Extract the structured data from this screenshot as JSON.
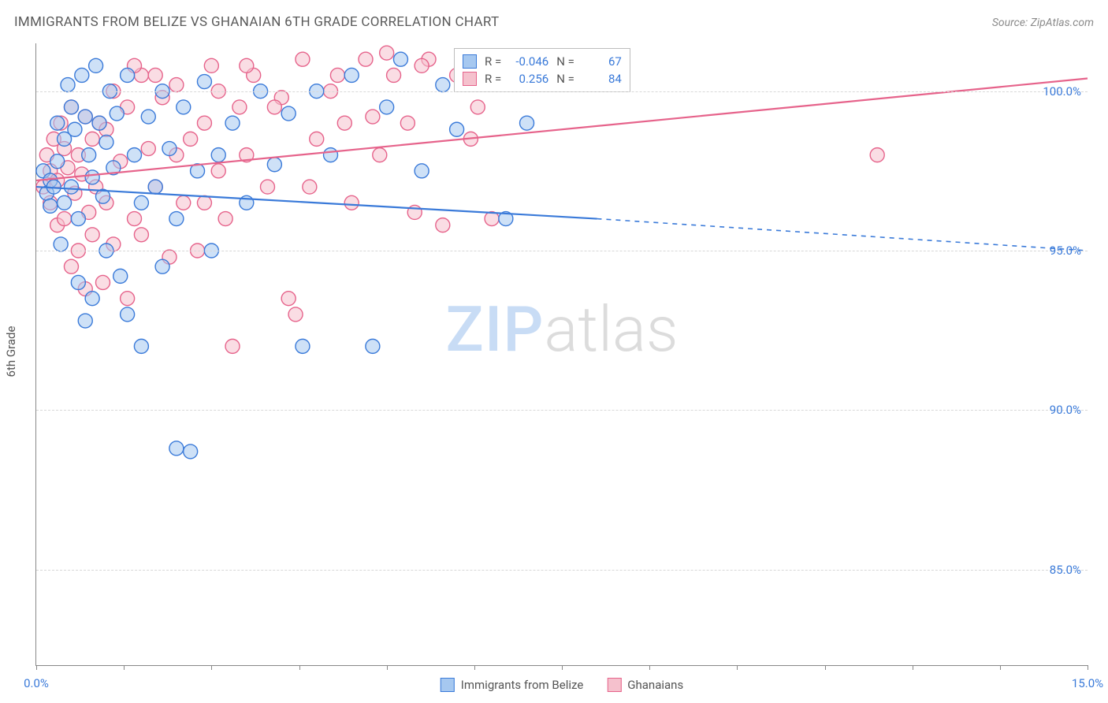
{
  "title": "IMMIGRANTS FROM BELIZE VS GHANAIAN 6TH GRADE CORRELATION CHART",
  "source": "Source: ZipAtlas.com",
  "y_axis_label": "6th Grade",
  "watermark": {
    "zip": "ZIP",
    "atlas": "atlas"
  },
  "colors": {
    "blue_fill": "#a6c8f0",
    "blue_stroke": "#3a7ad9",
    "pink_fill": "#f5c1cd",
    "pink_stroke": "#e6638b",
    "grid": "#d8d8d8",
    "axis": "#888888",
    "tick_text": "#3a7ad9",
    "label_text": "#555555"
  },
  "chart": {
    "type": "scatter",
    "xlim": [
      0.0,
      15.0
    ],
    "ylim": [
      82.0,
      101.5
    ],
    "x_ticks": [
      0.0,
      1.25,
      2.5,
      3.75,
      5.0,
      6.25,
      7.5,
      8.75,
      10.0,
      11.25,
      12.5,
      13.75,
      15.0
    ],
    "x_tick_labels": {
      "0": "0.0%",
      "15": "15.0%"
    },
    "y_ticks": [
      85.0,
      90.0,
      95.0,
      100.0
    ],
    "y_tick_labels": {
      "85": "85.0%",
      "90": "90.0%",
      "95": "95.0%",
      "100": "100.0%"
    },
    "marker_radius": 9,
    "marker_opacity": 0.55,
    "line_width": 2.2
  },
  "series": {
    "belize": {
      "label": "Immigrants from Belize",
      "color_fill": "#a6c8f0",
      "color_stroke": "#3a7ad9",
      "R": "-0.046",
      "N": "67",
      "regression": {
        "x1": 0.0,
        "y1": 97.0,
        "x2": 8.0,
        "y2": 96.0,
        "dashed_to_x": 15.0,
        "dashed_to_y": 95.0
      },
      "points": [
        [
          0.1,
          97.5
        ],
        [
          0.15,
          96.8
        ],
        [
          0.2,
          97.2
        ],
        [
          0.2,
          96.4
        ],
        [
          0.25,
          97.0
        ],
        [
          0.3,
          99.0
        ],
        [
          0.3,
          97.8
        ],
        [
          0.35,
          95.2
        ],
        [
          0.4,
          98.5
        ],
        [
          0.4,
          96.5
        ],
        [
          0.45,
          100.2
        ],
        [
          0.5,
          99.5
        ],
        [
          0.5,
          97.0
        ],
        [
          0.55,
          98.8
        ],
        [
          0.6,
          96.0
        ],
        [
          0.6,
          94.0
        ],
        [
          0.65,
          100.5
        ],
        [
          0.7,
          99.2
        ],
        [
          0.7,
          92.8
        ],
        [
          0.75,
          98.0
        ],
        [
          0.8,
          97.3
        ],
        [
          0.8,
          93.5
        ],
        [
          0.85,
          100.8
        ],
        [
          0.9,
          99.0
        ],
        [
          0.95,
          96.7
        ],
        [
          1.0,
          98.4
        ],
        [
          1.0,
          95.0
        ],
        [
          1.05,
          100.0
        ],
        [
          1.1,
          97.6
        ],
        [
          1.15,
          99.3
        ],
        [
          1.2,
          94.2
        ],
        [
          1.3,
          100.5
        ],
        [
          1.3,
          93.0
        ],
        [
          1.4,
          98.0
        ],
        [
          1.5,
          96.5
        ],
        [
          1.5,
          92.0
        ],
        [
          1.6,
          99.2
        ],
        [
          1.7,
          97.0
        ],
        [
          1.8,
          100.0
        ],
        [
          1.8,
          94.5
        ],
        [
          1.9,
          98.2
        ],
        [
          2.0,
          88.8
        ],
        [
          2.0,
          96.0
        ],
        [
          2.1,
          99.5
        ],
        [
          2.2,
          88.7
        ],
        [
          2.3,
          97.5
        ],
        [
          2.4,
          100.3
        ],
        [
          2.5,
          95.0
        ],
        [
          2.6,
          98.0
        ],
        [
          2.8,
          99.0
        ],
        [
          3.0,
          96.5
        ],
        [
          3.2,
          100.0
        ],
        [
          3.4,
          97.7
        ],
        [
          3.6,
          99.3
        ],
        [
          3.8,
          92.0
        ],
        [
          4.0,
          100.0
        ],
        [
          4.2,
          98.0
        ],
        [
          4.5,
          100.5
        ],
        [
          4.8,
          92.0
        ],
        [
          5.0,
          99.5
        ],
        [
          5.2,
          101.0
        ],
        [
          5.5,
          97.5
        ],
        [
          5.8,
          100.2
        ],
        [
          6.0,
          98.8
        ],
        [
          6.3,
          100.5
        ],
        [
          6.7,
          96.0
        ],
        [
          7.0,
          99.0
        ]
      ]
    },
    "ghanaians": {
      "label": "Ghanaians",
      "color_fill": "#f5c1cd",
      "color_stroke": "#e6638b",
      "R": "0.256",
      "N": "84",
      "regression": {
        "x1": 0.0,
        "y1": 97.2,
        "x2": 15.0,
        "y2": 100.4
      },
      "points": [
        [
          0.1,
          97.0
        ],
        [
          0.15,
          98.0
        ],
        [
          0.2,
          96.5
        ],
        [
          0.2,
          97.5
        ],
        [
          0.25,
          98.5
        ],
        [
          0.3,
          95.8
        ],
        [
          0.3,
          97.2
        ],
        [
          0.35,
          99.0
        ],
        [
          0.4,
          96.0
        ],
        [
          0.4,
          98.2
        ],
        [
          0.45,
          97.6
        ],
        [
          0.5,
          99.5
        ],
        [
          0.5,
          94.5
        ],
        [
          0.55,
          96.8
        ],
        [
          0.6,
          98.0
        ],
        [
          0.6,
          95.0
        ],
        [
          0.65,
          97.4
        ],
        [
          0.7,
          99.2
        ],
        [
          0.7,
          93.8
        ],
        [
          0.75,
          96.2
        ],
        [
          0.8,
          98.5
        ],
        [
          0.8,
          95.5
        ],
        [
          0.85,
          97.0
        ],
        [
          0.9,
          99.0
        ],
        [
          0.95,
          94.0
        ],
        [
          1.0,
          98.8
        ],
        [
          1.0,
          96.5
        ],
        [
          1.1,
          100.0
        ],
        [
          1.1,
          95.2
        ],
        [
          1.2,
          97.8
        ],
        [
          1.3,
          99.5
        ],
        [
          1.3,
          93.5
        ],
        [
          1.4,
          96.0
        ],
        [
          1.5,
          100.5
        ],
        [
          1.5,
          95.5
        ],
        [
          1.6,
          98.2
        ],
        [
          1.7,
          97.0
        ],
        [
          1.8,
          99.8
        ],
        [
          1.9,
          94.8
        ],
        [
          2.0,
          100.2
        ],
        [
          2.1,
          96.5
        ],
        [
          2.2,
          98.5
        ],
        [
          2.3,
          95.0
        ],
        [
          2.4,
          99.0
        ],
        [
          2.5,
          100.8
        ],
        [
          2.6,
          97.5
        ],
        [
          2.7,
          96.0
        ],
        [
          2.8,
          92.0
        ],
        [
          2.9,
          99.5
        ],
        [
          3.0,
          98.0
        ],
        [
          3.1,
          100.5
        ],
        [
          3.3,
          97.0
        ],
        [
          3.5,
          99.8
        ],
        [
          3.6,
          93.5
        ],
        [
          3.7,
          93.0
        ],
        [
          3.8,
          101.0
        ],
        [
          4.0,
          98.5
        ],
        [
          4.2,
          100.0
        ],
        [
          4.4,
          99.0
        ],
        [
          4.5,
          96.5
        ],
        [
          4.7,
          101.0
        ],
        [
          4.9,
          98.0
        ],
        [
          5.0,
          101.2
        ],
        [
          5.1,
          100.5
        ],
        [
          5.3,
          99.0
        ],
        [
          5.4,
          96.2
        ],
        [
          5.6,
          101.0
        ],
        [
          5.8,
          95.8
        ],
        [
          6.0,
          100.5
        ],
        [
          6.3,
          99.5
        ],
        [
          6.5,
          96.0
        ],
        [
          12.0,
          98.0
        ],
        [
          1.4,
          100.8
        ],
        [
          1.7,
          100.5
        ],
        [
          2.0,
          98.0
        ],
        [
          2.4,
          96.5
        ],
        [
          2.6,
          100.0
        ],
        [
          3.0,
          100.8
        ],
        [
          3.4,
          99.5
        ],
        [
          3.9,
          97.0
        ],
        [
          4.3,
          100.5
        ],
        [
          4.8,
          99.2
        ],
        [
          5.5,
          100.8
        ],
        [
          6.2,
          98.5
        ]
      ]
    }
  },
  "stat_box": {
    "r_label": "R =",
    "n_label": "N ="
  }
}
